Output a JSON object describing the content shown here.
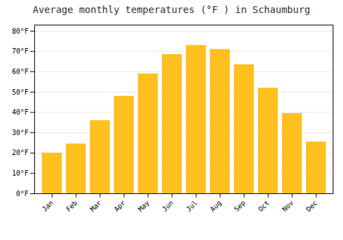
{
  "chart_data": {
    "type": "bar",
    "title": "Average monthly temperatures (°F ) in Schaumburg",
    "categories": [
      "Jan",
      "Feb",
      "Mar",
      "Apr",
      "May",
      "Jun",
      "Jul",
      "Aug",
      "Sep",
      "Oct",
      "Nov",
      "Dec"
    ],
    "values": [
      20,
      24.5,
      36,
      48,
      59,
      68.5,
      73,
      71,
      63.5,
      52,
      39.5,
      25.5
    ],
    "color": "#FFC020",
    "ylim": [
      0,
      83
    ],
    "yticks": [
      {
        "value": 0,
        "label": "0°F"
      },
      {
        "value": 10,
        "label": "10°F"
      },
      {
        "value": 20,
        "label": "20°F"
      },
      {
        "value": 30,
        "label": "30°F"
      },
      {
        "value": 40,
        "label": "40°F"
      },
      {
        "value": 50,
        "label": "50°F"
      },
      {
        "value": 60,
        "label": "60°F"
      },
      {
        "value": 70,
        "label": "70°F"
      },
      {
        "value": 80,
        "label": "80°F"
      }
    ],
    "grid": true
  }
}
